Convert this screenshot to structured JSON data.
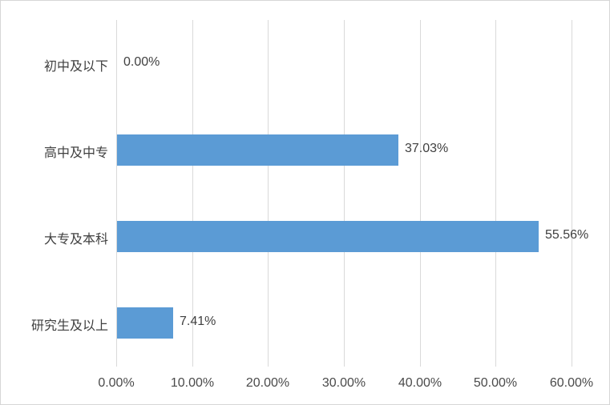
{
  "chart_data": {
    "type": "bar",
    "orientation": "horizontal",
    "title": "",
    "categories": [
      "初中及以下",
      "高中及中专",
      "大专及本科",
      "研究生及以上"
    ],
    "values": [
      0.0,
      37.03,
      55.56,
      7.41
    ],
    "data_labels": [
      "0.00%",
      "37.03%",
      "55.56%",
      "7.41%"
    ],
    "x_tick_labels": [
      "0.00%",
      "10.00%",
      "20.00%",
      "30.00%",
      "40.00%",
      "50.00%",
      "60.00%"
    ],
    "x_tick_values": [
      0,
      10,
      20,
      30,
      40,
      50,
      60
    ],
    "xlim": [
      0,
      60
    ],
    "grid": "vertical-only",
    "legend": false,
    "bar_color": "#5B9BD5",
    "gridline_color": "#D9D9D9",
    "text_color": "#404040",
    "background_color": "#FFFFFF"
  }
}
